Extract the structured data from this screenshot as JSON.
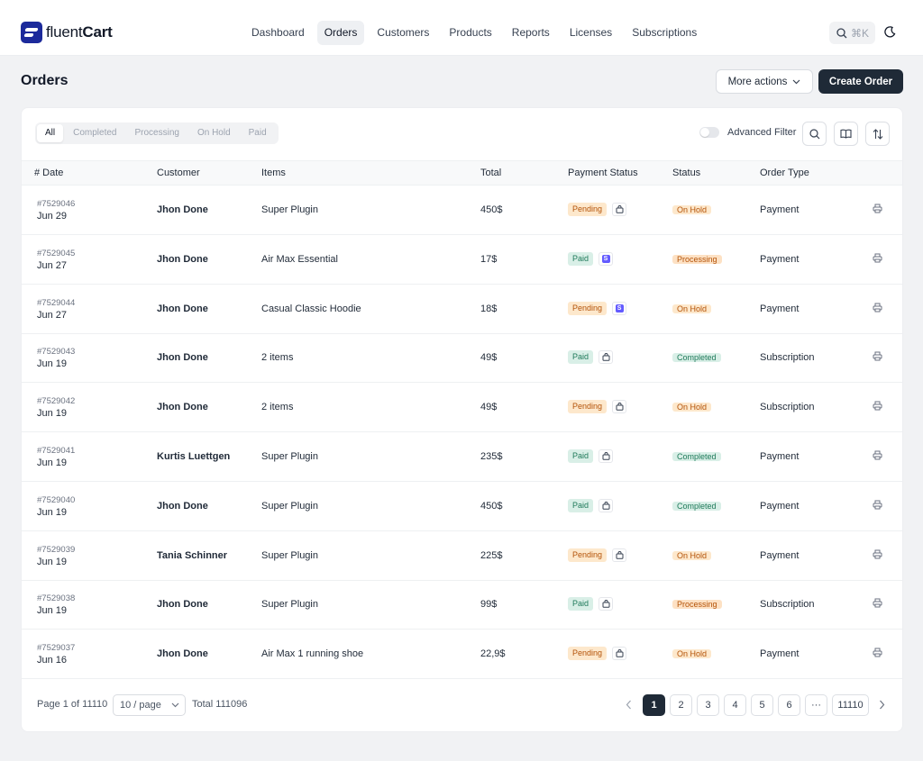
{
  "brand": {
    "name_a": "fluent",
    "name_b": "Cart"
  },
  "nav": [
    "Dashboard",
    "Orders",
    "Customers",
    "Products",
    "Reports",
    "Licenses",
    "Subscriptions"
  ],
  "search": {
    "shortcut": "⌘K"
  },
  "page": {
    "title": "Orders",
    "more_actions": "More actions",
    "create": "Create Order"
  },
  "tabs": [
    "All",
    "Completed",
    "Processing",
    "On Hold",
    "Paid"
  ],
  "filter": {
    "advanced": "Advanced Filter"
  },
  "columns": {
    "date": "# Date",
    "customer": "Customer",
    "items": "Items",
    "total": "Total",
    "payment": "Payment Status",
    "status": "Status",
    "type": "Order Type"
  },
  "orders": [
    {
      "no": "#7529046",
      "date": "Jun 29",
      "customer": "Jhon Done",
      "items": "Super Plugin",
      "total": "450$",
      "payment": "Pending",
      "gateway": "bag",
      "status": "On Hold",
      "type": "Payment"
    },
    {
      "no": "#7529045",
      "date": "Jun 27",
      "customer": "Jhon Done",
      "items": "Air Max Essential",
      "total": "17$",
      "payment": "Paid",
      "gateway": "stripe",
      "status": "Processing",
      "type": "Payment"
    },
    {
      "no": "#7529044",
      "date": "Jun 27",
      "customer": "Jhon Done",
      "items": "Casual Classic Hoodie",
      "total": "18$",
      "payment": "Pending",
      "gateway": "stripe",
      "status": "On Hold",
      "type": "Payment"
    },
    {
      "no": "#7529043",
      "date": "Jun 19",
      "customer": "Jhon Done",
      "items": "2 items",
      "total": "49$",
      "payment": "Paid",
      "gateway": "bag",
      "status": "Completed",
      "type": "Subscription"
    },
    {
      "no": "#7529042",
      "date": "Jun 19",
      "customer": "Jhon Done",
      "items": "2 items",
      "total": "49$",
      "payment": "Pending",
      "gateway": "bag",
      "status": "On Hold",
      "type": "Subscription"
    },
    {
      "no": "#7529041",
      "date": "Jun 19",
      "customer": "Kurtis Luettgen",
      "items": "Super Plugin",
      "total": "235$",
      "payment": "Paid",
      "gateway": "bag",
      "status": "Completed",
      "type": "Payment"
    },
    {
      "no": "#7529040",
      "date": "Jun 19",
      "customer": "Jhon Done",
      "items": "Super Plugin",
      "total": "450$",
      "payment": "Paid",
      "gateway": "bag",
      "status": "Completed",
      "type": "Payment"
    },
    {
      "no": "#7529039",
      "date": "Jun 19",
      "customer": "Tania Schinner",
      "items": "Super Plugin",
      "total": "225$",
      "payment": "Pending",
      "gateway": "bag",
      "status": "On Hold",
      "type": "Payment"
    },
    {
      "no": "#7529038",
      "date": "Jun 19",
      "customer": "Jhon Done",
      "items": "Super Plugin",
      "total": "99$",
      "payment": "Paid",
      "gateway": "bag",
      "status": "Processing",
      "type": "Subscription"
    },
    {
      "no": "#7529037",
      "date": "Jun 16",
      "customer": "Jhon Done",
      "items": "Air Max 1 running shoe",
      "total": "22,9$",
      "payment": "Pending",
      "gateway": "bag",
      "status": "On Hold",
      "type": "Payment"
    }
  ],
  "pagination": {
    "page_info": "Page 1 of 11110",
    "per_page": "10 / page",
    "total": "Total 111096",
    "pages": [
      "1",
      "2",
      "3",
      "4",
      "5",
      "6"
    ],
    "ellipsis": "···",
    "last": "11110"
  },
  "colors": {
    "accent": "#1f2a37",
    "brand": "#1c2a9b",
    "stripe": "#635bff"
  }
}
